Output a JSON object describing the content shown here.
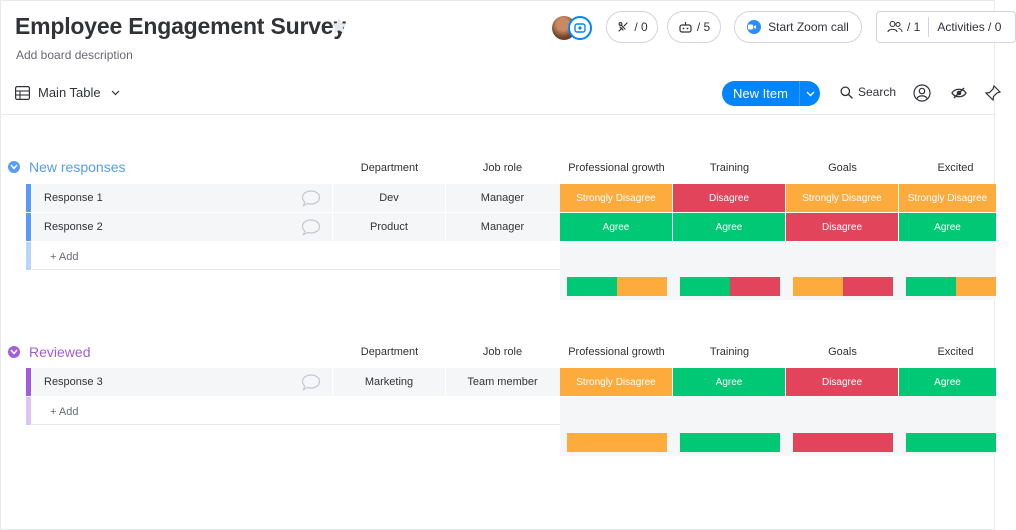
{
  "board": {
    "title": "Employee Engagement Survey",
    "description": "Add board description"
  },
  "header": {
    "integrations_count": "/ 0",
    "automations_count": "/ 5",
    "zoom_label": "Start Zoom call",
    "people_count": "/ 1",
    "activities_label": "Activities / 0"
  },
  "toolbar": {
    "view_label": "Main Table",
    "new_item_label": "New Item",
    "search_label": "Search"
  },
  "colors": {
    "agree": "#00c875",
    "disagree": "#e2445c",
    "strongly_disagree": "#fdab3d",
    "accent": "#0085ff"
  },
  "groups": [
    {
      "title": "New responses",
      "color": "#579bfc",
      "columns": [
        "Department",
        "Job role",
        "Professional growth",
        "Training",
        "Goals",
        "Excited"
      ],
      "rows": [
        {
          "name": "Response 1",
          "department": "Dev",
          "job_role": "Manager",
          "statuses": [
            "Strongly Disagree",
            "Disagree",
            "Strongly Disagree",
            "Strongly Disagree"
          ]
        },
        {
          "name": "Response 2",
          "department": "Product",
          "job_role": "Manager",
          "statuses": [
            "Agree",
            "Agree",
            "Disagree",
            "Agree"
          ]
        }
      ],
      "add_label": "+ Add"
    },
    {
      "title": "Reviewed",
      "color": "#a25ddc",
      "columns": [
        "Department",
        "Job role",
        "Professional growth",
        "Training",
        "Goals",
        "Excited"
      ],
      "rows": [
        {
          "name": "Response 3",
          "department": "Marketing",
          "job_role": "Team member",
          "statuses": [
            "Strongly Disagree",
            "Agree",
            "Disagree",
            "Agree"
          ]
        }
      ],
      "add_label": "+ Add"
    }
  ]
}
